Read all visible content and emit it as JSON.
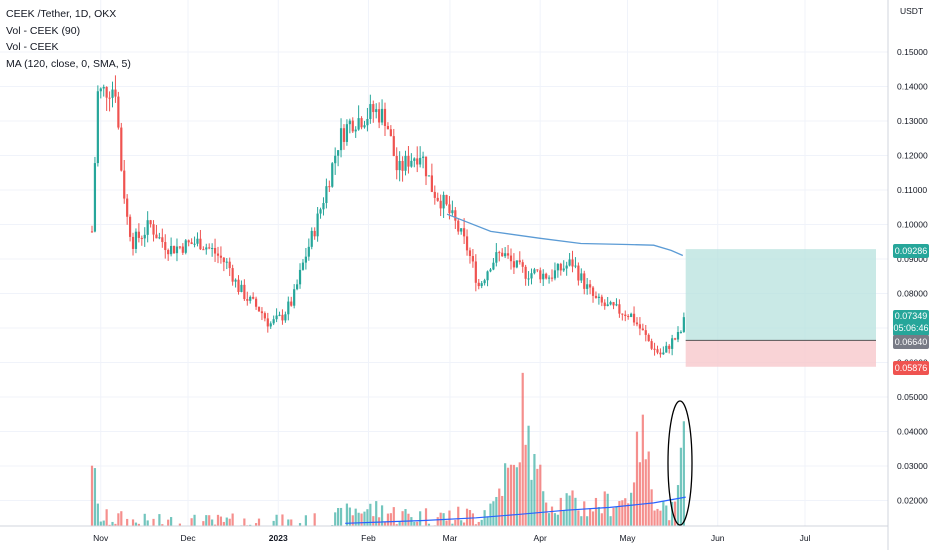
{
  "legend": {
    "title": "CEEK /Tether, 1D, OKX",
    "line2": "Vol - CEEK (90)",
    "line3": "Vol - CEEK",
    "line4": "MA (120, close, 0, SMA, 5)"
  },
  "axis_unit": "USDT",
  "price_tags": {
    "target": "0.09286",
    "current": "0.07349",
    "countdown": "05:06:46",
    "entry": "0.06640",
    "stop": "0.05876"
  },
  "colors": {
    "up": "#26a69a",
    "down": "#ef5350",
    "ma": "#2962ff",
    "ma_price": "#5b9bd5",
    "profit_zone": "#b2dfdb",
    "loss_zone": "#f8c8cc",
    "entry_tag": "#787b86"
  },
  "chart_data": {
    "type": "candlestick",
    "symbol": "CEEK /Tether",
    "interval": "1D",
    "exchange": "OKX",
    "y_axis_ticks": [
      "0.15000",
      "0.14000",
      "0.13000",
      "0.12000",
      "0.11000",
      "0.10000",
      "0.09000",
      "0.08000",
      "0.07000",
      "0.06000",
      "0.05000",
      "0.04000",
      "0.03000",
      "0.02000"
    ],
    "x_axis_ticks": [
      "Nov",
      "Dec",
      "2023",
      "Feb",
      "Mar",
      "Apr",
      "May",
      "Jun",
      "Jul"
    ],
    "price_trend": [
      [
        "2022-10-29",
        0.098
      ],
      [
        "2022-10-31",
        0.138
      ],
      [
        "2022-11-03",
        0.139
      ],
      [
        "2022-11-06",
        0.14
      ],
      [
        "2022-11-08",
        0.117
      ],
      [
        "2022-11-10",
        0.102
      ],
      [
        "2022-11-12",
        0.095
      ],
      [
        "2022-11-15",
        0.097
      ],
      [
        "2022-11-18",
        0.1
      ],
      [
        "2022-11-21",
        0.096
      ],
      [
        "2022-11-25",
        0.093
      ],
      [
        "2022-11-30",
        0.094
      ],
      [
        "2022-12-05",
        0.095
      ],
      [
        "2022-12-10",
        0.092
      ],
      [
        "2022-12-15",
        0.088
      ],
      [
        "2022-12-18",
        0.082
      ],
      [
        "2022-12-22",
        0.078
      ],
      [
        "2022-12-26",
        0.075
      ],
      [
        "2022-12-29",
        0.071
      ],
      [
        "2023-01-02",
        0.073
      ],
      [
        "2023-01-06",
        0.078
      ],
      [
        "2023-01-10",
        0.09
      ],
      [
        "2023-01-14",
        0.1
      ],
      [
        "2023-01-18",
        0.112
      ],
      [
        "2023-01-22",
        0.125
      ],
      [
        "2023-01-26",
        0.13
      ],
      [
        "2023-01-30",
        0.131
      ],
      [
        "2023-02-03",
        0.133
      ],
      [
        "2023-02-07",
        0.131
      ],
      [
        "2023-02-11",
        0.115
      ],
      [
        "2023-02-15",
        0.119
      ],
      [
        "2023-02-19",
        0.121
      ],
      [
        "2023-02-23",
        0.11
      ],
      [
        "2023-02-27",
        0.106
      ],
      [
        "2023-03-03",
        0.1
      ],
      [
        "2023-03-07",
        0.093
      ],
      [
        "2023-03-11",
        0.082
      ],
      [
        "2023-03-15",
        0.089
      ],
      [
        "2023-03-19",
        0.092
      ],
      [
        "2023-03-23",
        0.088
      ],
      [
        "2023-03-27",
        0.086
      ],
      [
        "2023-03-31",
        0.086
      ],
      [
        "2023-04-04",
        0.085
      ],
      [
        "2023-04-08",
        0.087
      ],
      [
        "2023-04-12",
        0.089
      ],
      [
        "2023-04-16",
        0.083
      ],
      [
        "2023-04-20",
        0.078
      ],
      [
        "2023-04-24",
        0.076
      ],
      [
        "2023-04-28",
        0.075
      ],
      [
        "2023-05-02",
        0.074
      ],
      [
        "2023-05-06",
        0.069
      ],
      [
        "2023-05-10",
        0.064
      ],
      [
        "2023-05-13",
        0.062
      ],
      [
        "2023-05-16",
        0.066
      ],
      [
        "2023-05-19",
        0.068
      ],
      [
        "2023-05-21",
        0.0735
      ]
    ],
    "ma_120": [
      [
        "2023-02-28",
        0.103
      ],
      [
        "2023-03-15",
        0.098
      ],
      [
        "2023-04-01",
        0.096
      ],
      [
        "2023-04-15",
        0.0945
      ],
      [
        "2023-05-01",
        0.0942
      ],
      [
        "2023-05-10",
        0.094
      ],
      [
        "2023-05-16",
        0.0925
      ],
      [
        "2023-05-20",
        0.091
      ]
    ],
    "volume": [
      [
        "2022-10-29",
        0.0355
      ],
      [
        "2022-10-31",
        0.018
      ],
      [
        "2022-11-02",
        0.015
      ],
      [
        "2022-11-05",
        0.016
      ],
      [
        "2022-11-10",
        0.0145
      ],
      [
        "2022-11-20",
        0.014
      ],
      [
        "2022-12-10",
        0.0142
      ],
      [
        "2023-01-10",
        0.014
      ],
      [
        "2023-01-20",
        0.0148
      ],
      [
        "2023-01-28",
        0.0185
      ],
      [
        "2023-02-05",
        0.018
      ],
      [
        "2023-02-12",
        0.0165
      ],
      [
        "2023-02-25",
        0.016
      ],
      [
        "2023-03-10",
        0.0165
      ],
      [
        "2023-03-16",
        0.02
      ],
      [
        "2023-03-20",
        0.029
      ],
      [
        "2023-03-24",
        0.0295
      ],
      [
        "2023-03-26",
        0.051
      ],
      [
        "2023-03-29",
        0.033
      ],
      [
        "2023-04-05",
        0.02
      ],
      [
        "2023-04-10",
        0.021
      ],
      [
        "2023-04-15",
        0.019
      ],
      [
        "2023-04-20",
        0.0195
      ],
      [
        "2023-05-01",
        0.0215
      ],
      [
        "2023-05-06",
        0.042
      ],
      [
        "2023-05-10",
        0.023
      ],
      [
        "2023-05-15",
        0.018
      ],
      [
        "2023-05-18",
        0.0175
      ],
      [
        "2023-05-20",
        0.048
      ],
      [
        "2023-05-21",
        0.029
      ]
    ],
    "volume_ma": [
      [
        "2023-01-24",
        0.0134
      ],
      [
        "2023-02-20",
        0.0142
      ],
      [
        "2023-03-10",
        0.015
      ],
      [
        "2023-03-25",
        0.016
      ],
      [
        "2023-04-10",
        0.0172
      ],
      [
        "2023-04-25",
        0.018
      ],
      [
        "2023-05-10",
        0.0193
      ],
      [
        "2023-05-21",
        0.021
      ]
    ],
    "position": {
      "type": "long",
      "target": 0.09286,
      "entry": 0.0664,
      "stop": 0.05876,
      "current": 0.07349
    },
    "annotation": "ellipse around volume spike",
    "grid": true
  }
}
